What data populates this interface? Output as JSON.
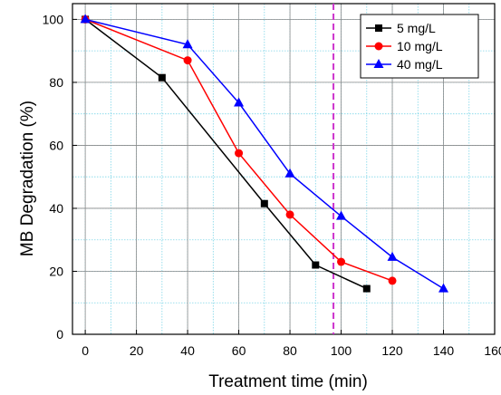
{
  "chart_data": {
    "type": "line",
    "title": "",
    "xlabel": "Treatment time (min)",
    "ylabel": "MB Degradation (%)",
    "xlim": [
      -5,
      160
    ],
    "ylim": [
      0,
      105
    ],
    "xticks": [
      0,
      20,
      40,
      60,
      80,
      100,
      120,
      140,
      160
    ],
    "yticks": [
      0,
      20,
      40,
      60,
      80,
      100
    ],
    "grid": true,
    "legend_position": "top-right",
    "vertical_reference_line": {
      "x": 97,
      "color": "#cc33cc",
      "style": "dashed"
    },
    "series": [
      {
        "name": "5 mg/L",
        "color": "#000000",
        "marker": "square",
        "x": [
          0,
          30,
          70,
          90,
          110
        ],
        "y": [
          100,
          81.5,
          41.5,
          22,
          14.5
        ]
      },
      {
        "name": "10 mg/L",
        "color": "#ff0000",
        "marker": "circle",
        "x": [
          0,
          40,
          60,
          80,
          100,
          120
        ],
        "y": [
          100,
          87,
          57.5,
          38,
          23,
          17
        ]
      },
      {
        "name": "40 mg/L",
        "color": "#0000ff",
        "marker": "triangle",
        "x": [
          0,
          40,
          60,
          80,
          100,
          120,
          140
        ],
        "y": [
          100,
          92,
          73.5,
          51,
          37.5,
          24.5,
          14.5
        ]
      }
    ]
  }
}
